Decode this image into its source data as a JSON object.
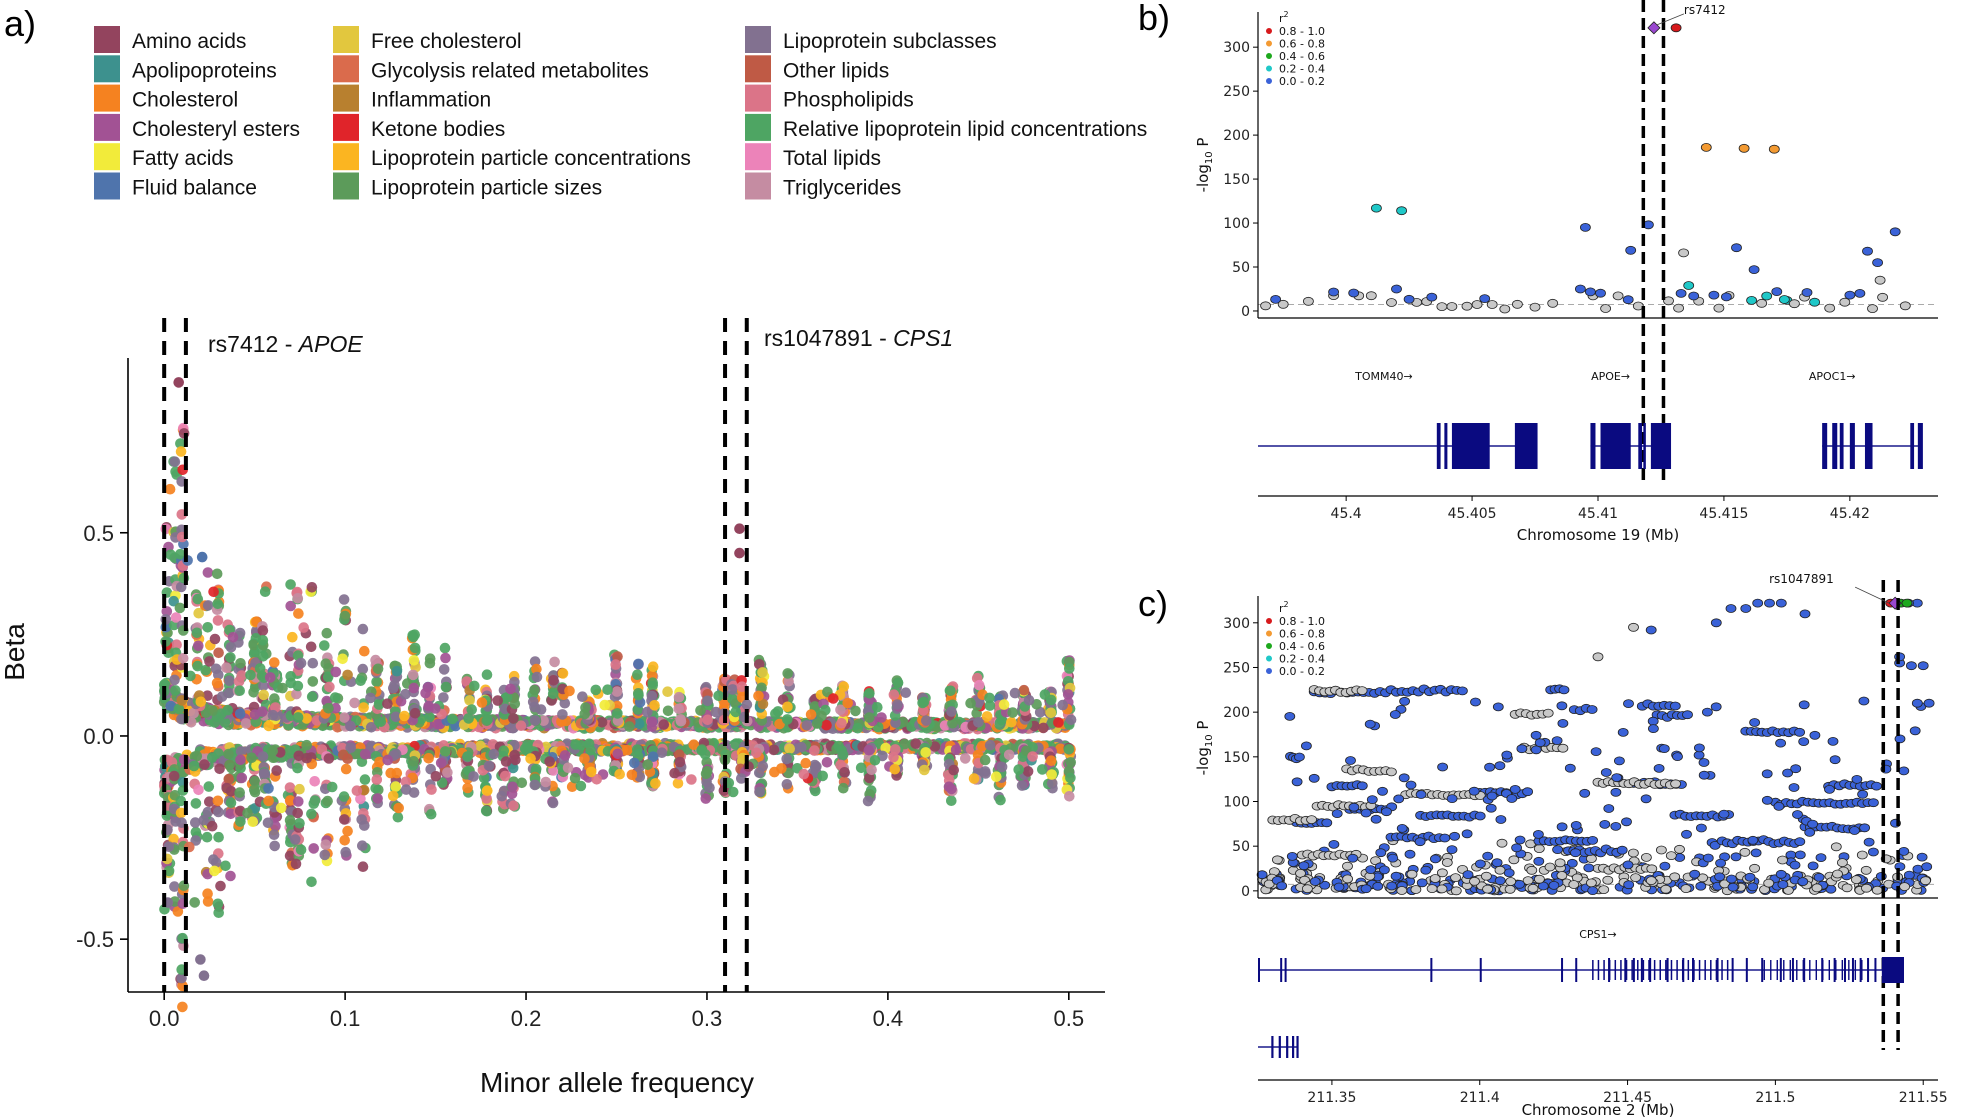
{
  "panels": {
    "a": "a)",
    "b": "b)",
    "c": "c)"
  },
  "chart_data": [
    {
      "id": "a",
      "type": "scatter",
      "title": "",
      "xlabel": "Minor allele frequency",
      "ylabel": "Beta",
      "xlim": [
        -0.02,
        0.52
      ],
      "ylim": [
        -0.63,
        0.93
      ],
      "xticks": [
        "0.0",
        "0.1",
        "0.2",
        "0.3",
        "0.4",
        "0.5"
      ],
      "xtick_values": [
        0.0,
        0.1,
        0.2,
        0.3,
        0.4,
        0.5
      ],
      "yticks": [
        "-0.5",
        "0.0",
        "0.5"
      ],
      "ytick_values": [
        -0.5,
        0.0,
        0.5
      ],
      "vlines": [
        0.0,
        0.012,
        0.31,
        0.322
      ],
      "annotations": [
        {
          "pre": "rs7412 - ",
          "gene": "APOE",
          "x": 0.022,
          "y": 0.96
        },
        {
          "pre": "rs1047891 - ",
          "gene": "CPS1",
          "x": 0.332,
          "y": 0.96
        }
      ],
      "legend": [
        {
          "label": "Amino acids",
          "color": "#93445E"
        },
        {
          "label": "Apolipoproteins",
          "color": "#3D918E"
        },
        {
          "label": "Cholesterol",
          "color": "#F58220"
        },
        {
          "label": "Cholesteryl esters",
          "color": "#A25294"
        },
        {
          "label": "Fatty acids",
          "color": "#F2EB3A"
        },
        {
          "label": "Fluid balance",
          "color": "#4F74AC"
        },
        {
          "label": "Free cholesterol",
          "color": "#E2C73E"
        },
        {
          "label": "Glycolysis related metabolites",
          "color": "#DA6B4C"
        },
        {
          "label": "Inflammation",
          "color": "#B8802F"
        },
        {
          "label": "Ketone bodies",
          "color": "#E0242A"
        },
        {
          "label": "Lipoprotein particle concentrations",
          "color": "#FBB521"
        },
        {
          "label": "Lipoprotein particle sizes",
          "color": "#5C9B5A"
        },
        {
          "label": "Lipoprotein subclasses",
          "color": "#827190"
        },
        {
          "label": "Other lipids",
          "color": "#BF5A45"
        },
        {
          "label": "Phospholipids",
          "color": "#DB7488"
        },
        {
          "label": "Relative lipoprotein lipid concentrations",
          "color": "#4EA563"
        },
        {
          "label": "Total lipids",
          "color": "#EC83B9"
        },
        {
          "label": "Triglycerides",
          "color": "#C58CA2"
        }
      ],
      "outliers": [
        {
          "x": 0.008,
          "y": 0.87,
          "color": "#93445E"
        },
        {
          "x": 0.318,
          "y": 0.51,
          "color": "#93445E"
        },
        {
          "x": 0.318,
          "y": 0.45,
          "color": "#93445E"
        },
        {
          "x": 0.021,
          "y": 0.44,
          "color": "#4F74AC"
        },
        {
          "x": 0.002,
          "y": -0.41,
          "color": "#827190"
        },
        {
          "x": 0.022,
          "y": -0.59,
          "color": "#827190"
        },
        {
          "x": 0.02,
          "y": -0.55,
          "color": "#827190"
        }
      ]
    },
    {
      "id": "b",
      "type": "scatter",
      "xlabel": "Chromosome 19 (Mb)",
      "ylabel_main": "-log",
      "ylabel_sub": "10",
      "ylabel_end": " P",
      "xlim": [
        45.3965,
        45.4235
      ],
      "ylim": [
        -8,
        340
      ],
      "xticks": [
        "45.4",
        "45.405",
        "45.41",
        "45.415",
        "45.42"
      ],
      "xtick_values": [
        45.4,
        45.405,
        45.41,
        45.415,
        45.42
      ],
      "yticks": [
        "0",
        "50",
        "100",
        "150",
        "200",
        "250",
        "300"
      ],
      "ytick_values": [
        0,
        50,
        100,
        150,
        200,
        250,
        300
      ],
      "threshold": 7.3,
      "vlines": [
        45.4118,
        45.4126
      ],
      "lead_snp": {
        "label": "rs7412",
        "x": 45.41222,
        "y": 322
      },
      "r2_legend": {
        "title": "r",
        "title_sup": "2",
        "items": [
          {
            "label": "0.8 - 1.0",
            "color": "#D7191C"
          },
          {
            "label": "0.6 - 0.8",
            "color": "#F39A32"
          },
          {
            "label": "0.4 - 0.6",
            "color": "#1DA81D"
          },
          {
            "label": "0.2 - 0.4",
            "color": "#1FC8C8"
          },
          {
            "label": "0.0 - 0.2",
            "color": "#3A62D8"
          }
        ]
      },
      "genes": [
        {
          "label": "TOMM40→",
          "x": 45.4015
        },
        {
          "label": "APOE→",
          "x": 45.4105
        },
        {
          "label": "APOC1→",
          "x": 45.4193
        }
      ],
      "gene_xlim": [
        45.3965,
        45.4235
      ],
      "points": [
        {
          "x": 45.4012,
          "y": 117,
          "c": 3
        },
        {
          "x": 45.4022,
          "y": 114,
          "c": 3
        },
        {
          "x": 45.4095,
          "y": 95,
          "c": 4
        },
        {
          "x": 45.4113,
          "y": 69,
          "c": 4
        },
        {
          "x": 45.412,
          "y": 98,
          "c": 4
        },
        {
          "x": 45.4131,
          "y": 322,
          "c": 0
        },
        {
          "x": 45.4143,
          "y": 186,
          "c": 1
        },
        {
          "x": 45.4158,
          "y": 185,
          "c": 1
        },
        {
          "x": 45.417,
          "y": 184,
          "c": 1
        },
        {
          "x": 45.4155,
          "y": 72,
          "c": 4
        },
        {
          "x": 45.4162,
          "y": 47,
          "c": 4
        },
        {
          "x": 45.4134,
          "y": 66,
          "c": 5
        },
        {
          "x": 45.4136,
          "y": 29,
          "c": 3
        },
        {
          "x": 45.4161,
          "y": 12,
          "c": 3
        },
        {
          "x": 45.4167,
          "y": 17,
          "c": 3
        },
        {
          "x": 45.4175,
          "y": 12,
          "c": 3
        },
        {
          "x": 45.4186,
          "y": 10,
          "c": 3
        },
        {
          "x": 45.4174,
          "y": 13,
          "c": 3
        },
        {
          "x": 45.4218,
          "y": 90,
          "c": 4
        },
        {
          "x": 45.4212,
          "y": 35,
          "c": 5
        },
        {
          "x": 45.4211,
          "y": 55,
          "c": 4
        },
        {
          "x": 45.4207,
          "y": 68,
          "c": 4
        },
        {
          "x": 45.4204,
          "y": 20,
          "c": 4
        },
        {
          "x": 45.4133,
          "y": 20,
          "c": 4
        },
        {
          "x": 45.4146,
          "y": 18,
          "c": 4
        },
        {
          "x": 45.4171,
          "y": 22,
          "c": 4
        },
        {
          "x": 45.4093,
          "y": 25,
          "c": 4
        },
        {
          "x": 45.402,
          "y": 25,
          "c": 4
        }
      ]
    },
    {
      "id": "c",
      "type": "scatter",
      "xlabel": "Chromosome 2 (Mb)",
      "ylabel_main": "-log",
      "ylabel_sub": "10",
      "ylabel_end": " P",
      "xlim": [
        211.325,
        211.555
      ],
      "ylim": [
        -8,
        330
      ],
      "xticks": [
        "211.35",
        "211.4",
        "211.45",
        "211.5",
        "211.55"
      ],
      "xtick_values": [
        211.35,
        211.4,
        211.45,
        211.5,
        211.55
      ],
      "yticks": [
        "0",
        "50",
        "100",
        "150",
        "200",
        "250",
        "300"
      ],
      "ytick_values": [
        0,
        50,
        100,
        150,
        200,
        250,
        300
      ],
      "threshold": 7.3,
      "vlines": [
        211.5365,
        211.5415
      ],
      "lead_snp": {
        "label": "rs1047891",
        "x": 211.5405,
        "y": 322
      },
      "r2_legend": {
        "title": "r",
        "title_sup": "2",
        "items": [
          {
            "label": "0.8 - 1.0",
            "color": "#D7191C"
          },
          {
            "label": "0.6 - 0.8",
            "color": "#F39A32"
          },
          {
            "label": "0.4 - 0.6",
            "color": "#1DA81D"
          },
          {
            "label": "0.2 - 0.4",
            "color": "#1FC8C8"
          },
          {
            "label": "0.0 - 0.2",
            "color": "#3A62D8"
          }
        ]
      },
      "genes": [
        {
          "label": "CPS1→",
          "x": 211.44
        }
      ],
      "gene_xlim": [
        211.325,
        211.555
      ]
    }
  ]
}
